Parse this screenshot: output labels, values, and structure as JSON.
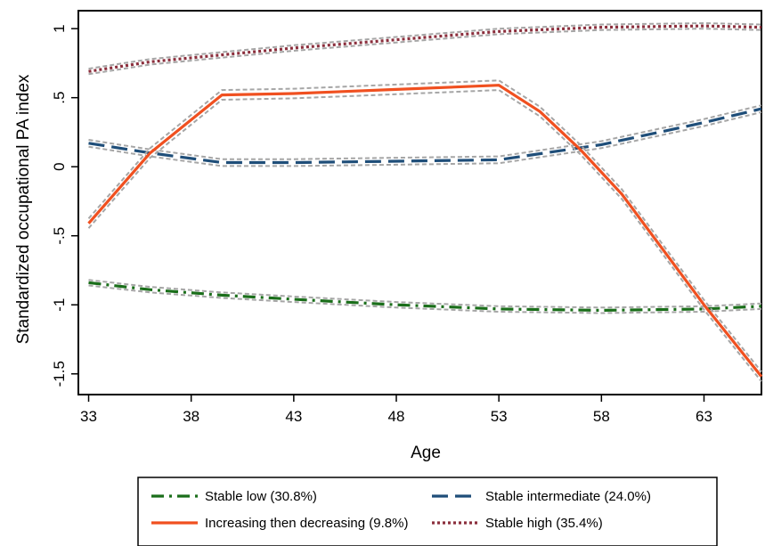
{
  "chart_data": {
    "type": "line",
    "xlabel": "Age",
    "ylabel": "Standardized occupational PA index",
    "xlim": [
      32.5,
      65.8
    ],
    "ylim": [
      -1.65,
      1.13
    ],
    "xticks": [
      33,
      38,
      43,
      48,
      53,
      58,
      63
    ],
    "yticks": [
      1,
      0.5,
      0,
      -0.5,
      -1,
      -1.5
    ],
    "ytick_labels": [
      "1",
      ".5",
      "0",
      "-.5",
      "-1",
      "-1.5"
    ],
    "grid": false,
    "legend_position": "bottom",
    "ci_band_color": "#a6a6a6",
    "series": [
      {
        "name": "Stable low (30.8%)",
        "color": "#1a6e1a",
        "dash": "dash-dot",
        "x": [
          33,
          36,
          39.5,
          43,
          48,
          53,
          58,
          63,
          65.8
        ],
        "y": [
          -0.84,
          -0.89,
          -0.93,
          -0.96,
          -1.0,
          -1.03,
          -1.04,
          -1.03,
          -1.01
        ],
        "ci_offset": 0.02
      },
      {
        "name": "Stable intermediate (24.0%)",
        "color": "#1f4e79",
        "dash": "long-dash",
        "x": [
          33,
          36,
          39.5,
          43,
          48,
          53,
          58,
          63,
          65.8
        ],
        "y": [
          0.17,
          0.1,
          0.03,
          0.03,
          0.04,
          0.05,
          0.16,
          0.32,
          0.42
        ],
        "ci_offset": 0.025
      },
      {
        "name": "Increasing then decreasing (9.8%)",
        "color": "#f05020",
        "dash": "solid",
        "x": [
          33,
          36,
          39.5,
          43,
          48,
          53,
          55,
          57,
          59,
          61,
          63,
          65.8
        ],
        "y": [
          -0.41,
          0.1,
          0.52,
          0.53,
          0.56,
          0.59,
          0.4,
          0.12,
          -0.2,
          -0.6,
          -1.0,
          -1.52
        ],
        "ci_offset": 0.035
      },
      {
        "name": "Stable high (35.4%)",
        "color": "#8b2e3c",
        "dash": "dot",
        "x": [
          33,
          36,
          39.5,
          43,
          48,
          53,
          58,
          63,
          65.8
        ],
        "y": [
          0.69,
          0.76,
          0.81,
          0.86,
          0.92,
          0.98,
          1.01,
          1.02,
          1.01
        ],
        "ci_offset": 0.02
      }
    ]
  }
}
